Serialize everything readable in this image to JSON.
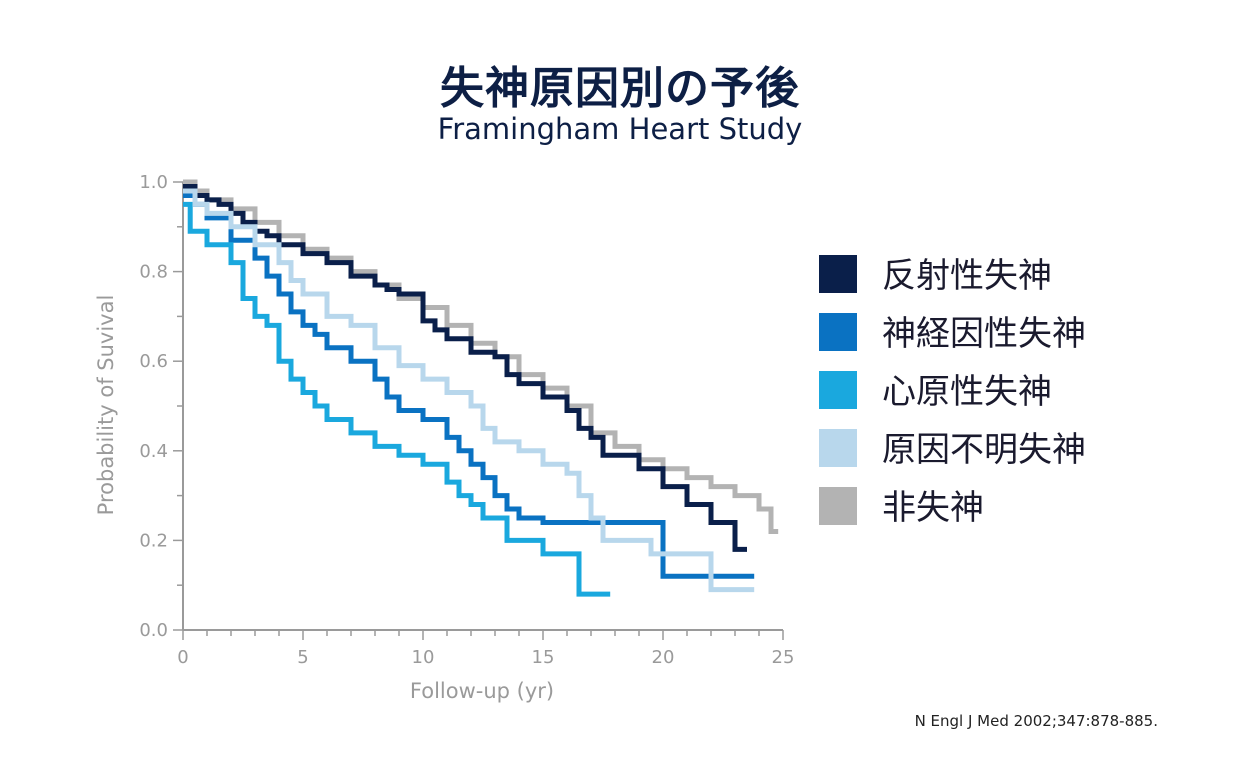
{
  "title": "失神原因別の予後",
  "subtitle": "Framingham Heart Study",
  "citation": "N Engl J Med 2002;347:878-885.",
  "chart_data": {
    "type": "line",
    "step": true,
    "xlabel": "Follow-up (yr)",
    "ylabel": "Probability of Suvival",
    "xlim": [
      0,
      25
    ],
    "ylim": [
      0,
      1.0
    ],
    "xticks": [
      "0",
      "5",
      "10",
      "15",
      "20",
      "25"
    ],
    "yticks": [
      "0.0",
      "0.2",
      "0.4",
      "0.6",
      "0.8",
      "1.0"
    ],
    "grid": false,
    "legend": "right",
    "series": [
      {
        "name": "非失神",
        "color": "#b3b3b3",
        "points": [
          [
            0,
            1.0
          ],
          [
            0.5,
            0.98
          ],
          [
            1,
            0.96
          ],
          [
            2,
            0.94
          ],
          [
            3,
            0.91
          ],
          [
            4,
            0.88
          ],
          [
            5,
            0.85
          ],
          [
            6,
            0.83
          ],
          [
            7,
            0.8
          ],
          [
            8,
            0.77
          ],
          [
            9,
            0.74
          ],
          [
            10,
            0.72
          ],
          [
            11,
            0.68
          ],
          [
            12,
            0.64
          ],
          [
            13,
            0.61
          ],
          [
            14,
            0.57
          ],
          [
            15,
            0.54
          ],
          [
            16,
            0.5
          ],
          [
            17,
            0.44
          ],
          [
            18,
            0.41
          ],
          [
            19,
            0.38
          ],
          [
            20,
            0.36
          ],
          [
            21,
            0.34
          ],
          [
            22,
            0.32
          ],
          [
            23,
            0.3
          ],
          [
            24,
            0.27
          ],
          [
            24.5,
            0.22
          ],
          [
            24.8,
            0.22
          ]
        ]
      },
      {
        "name": "反射性失神",
        "color": "#0a1f4a",
        "points": [
          [
            0,
            0.99
          ],
          [
            0.5,
            0.97
          ],
          [
            1,
            0.96
          ],
          [
            1.5,
            0.95
          ],
          [
            2,
            0.93
          ],
          [
            2.5,
            0.91
          ],
          [
            3,
            0.89
          ],
          [
            3.5,
            0.88
          ],
          [
            4,
            0.86
          ],
          [
            5,
            0.84
          ],
          [
            6,
            0.82
          ],
          [
            7,
            0.79
          ],
          [
            8,
            0.77
          ],
          [
            8.5,
            0.76
          ],
          [
            9,
            0.75
          ],
          [
            10,
            0.69
          ],
          [
            10.5,
            0.67
          ],
          [
            11,
            0.65
          ],
          [
            12,
            0.62
          ],
          [
            13,
            0.61
          ],
          [
            13.5,
            0.57
          ],
          [
            14,
            0.55
          ],
          [
            15,
            0.52
          ],
          [
            16,
            0.49
          ],
          [
            16.5,
            0.45
          ],
          [
            17,
            0.43
          ],
          [
            17.5,
            0.39
          ],
          [
            19,
            0.36
          ],
          [
            20,
            0.32
          ],
          [
            21,
            0.28
          ],
          [
            22,
            0.24
          ],
          [
            23,
            0.18
          ],
          [
            23.5,
            0.18
          ]
        ]
      },
      {
        "name": "神経因性失神",
        "color": "#0a72c2",
        "points": [
          [
            0,
            0.97
          ],
          [
            0.5,
            0.95
          ],
          [
            1,
            0.92
          ],
          [
            2,
            0.87
          ],
          [
            3,
            0.83
          ],
          [
            3.5,
            0.79
          ],
          [
            4,
            0.75
          ],
          [
            4.5,
            0.71
          ],
          [
            5,
            0.68
          ],
          [
            5.5,
            0.66
          ],
          [
            6,
            0.63
          ],
          [
            7,
            0.6
          ],
          [
            8,
            0.56
          ],
          [
            8.5,
            0.52
          ],
          [
            9,
            0.49
          ],
          [
            10,
            0.47
          ],
          [
            11,
            0.43
          ],
          [
            11.5,
            0.4
          ],
          [
            12,
            0.37
          ],
          [
            12.5,
            0.34
          ],
          [
            13,
            0.3
          ],
          [
            13.5,
            0.27
          ],
          [
            14,
            0.25
          ],
          [
            15,
            0.24
          ],
          [
            20,
            0.12
          ],
          [
            23.8,
            0.12
          ]
        ]
      },
      {
        "name": "心原性失神",
        "color": "#1aa8de",
        "points": [
          [
            0,
            0.95
          ],
          [
            0.3,
            0.89
          ],
          [
            1,
            0.86
          ],
          [
            2,
            0.82
          ],
          [
            2.5,
            0.74
          ],
          [
            3,
            0.7
          ],
          [
            3.5,
            0.68
          ],
          [
            4,
            0.6
          ],
          [
            4.5,
            0.56
          ],
          [
            5,
            0.53
          ],
          [
            5.5,
            0.5
          ],
          [
            6,
            0.47
          ],
          [
            7,
            0.44
          ],
          [
            8,
            0.41
          ],
          [
            9,
            0.39
          ],
          [
            10,
            0.37
          ],
          [
            11,
            0.33
          ],
          [
            11.5,
            0.3
          ],
          [
            12,
            0.28
          ],
          [
            12.5,
            0.25
          ],
          [
            13.5,
            0.2
          ],
          [
            15,
            0.17
          ],
          [
            16.5,
            0.08
          ],
          [
            17.8,
            0.08
          ]
        ]
      },
      {
        "name": "原因不明失神",
        "color": "#b8d7ec",
        "points": [
          [
            0,
            0.98
          ],
          [
            0.5,
            0.95
          ],
          [
            1,
            0.93
          ],
          [
            2,
            0.9
          ],
          [
            3,
            0.86
          ],
          [
            4,
            0.82
          ],
          [
            4.5,
            0.78
          ],
          [
            5,
            0.75
          ],
          [
            6,
            0.7
          ],
          [
            7,
            0.68
          ],
          [
            8,
            0.63
          ],
          [
            9,
            0.59
          ],
          [
            10,
            0.56
          ],
          [
            11,
            0.53
          ],
          [
            12,
            0.5
          ],
          [
            12.5,
            0.45
          ],
          [
            13,
            0.42
          ],
          [
            14,
            0.4
          ],
          [
            15,
            0.37
          ],
          [
            16,
            0.35
          ],
          [
            16.5,
            0.3
          ],
          [
            17,
            0.25
          ],
          [
            17.5,
            0.2
          ],
          [
            19.5,
            0.17
          ],
          [
            22,
            0.09
          ],
          [
            23.8,
            0.09
          ]
        ]
      }
    ],
    "legend_order": [
      "反射性失神",
      "神経因性失神",
      "心原性失神",
      "原因不明失神",
      "非失神"
    ]
  }
}
